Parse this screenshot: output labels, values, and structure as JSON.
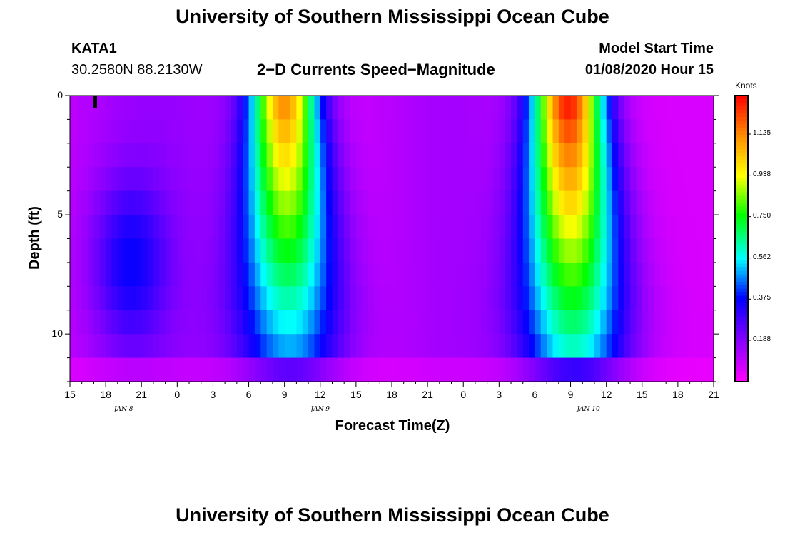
{
  "page": {
    "title_top": "University of Southern Mississippi Ocean Cube",
    "title_bottom": "University of Southern Mississippi Ocean Cube"
  },
  "header": {
    "station": "KATA1",
    "coords": "30.2580N 88.2130W",
    "plot_title": "2−D Currents Speed−Magnitude",
    "model_label": "Model Start Time",
    "model_time": "01/08/2020 Hour 15"
  },
  "colorbar": {
    "unit": "Knots",
    "ticks": [
      "1.125",
      "0.938",
      "0.750",
      "0.562",
      "0.375",
      "0.188"
    ],
    "tick_values": [
      1.125,
      0.938,
      0.75,
      0.562,
      0.375,
      0.188
    ],
    "range": [
      0,
      1.3
    ]
  },
  "chart_data": {
    "type": "heatmap",
    "title": "2−D Currents Speed−Magnitude",
    "xlabel": "Forecast Time(Z)",
    "ylabel": "Depth (ft)",
    "x_tick_labels": [
      "15",
      "18",
      "21",
      "0",
      "3",
      "6",
      "9",
      "12",
      "15",
      "18",
      "21",
      "0",
      "3",
      "6",
      "9",
      "12",
      "15",
      "18",
      "21"
    ],
    "x_date_labels": [
      {
        "label": "JAN 8",
        "hour": 4.5
      },
      {
        "label": "JAN 9",
        "hour": 21
      },
      {
        "label": "JAN 10",
        "hour": 43.5
      }
    ],
    "x_range_hours": [
      0,
      54
    ],
    "y_tick_labels": [
      "0",
      "5",
      "10"
    ],
    "y_tick_values": [
      0,
      5,
      10
    ],
    "y_range_ft": [
      0,
      12
    ],
    "depth_levels_ft": [
      0.5,
      1.5,
      2.5,
      3.5,
      4.5,
      5.5,
      6.5,
      7.5,
      8.5,
      9.5,
      10.5,
      11.5
    ],
    "units": "Knots",
    "colorscale_range": [
      0,
      1.3
    ],
    "speed_peaks": [
      {
        "hour": 18,
        "label": "JAN 9 09Z",
        "surface_speed": 1.1
      },
      {
        "hour": 41.5,
        "label": "JAN 10 08Z",
        "surface_speed": 1.27
      }
    ],
    "speed_minima_hours": [
      2,
      26,
      51
    ]
  }
}
